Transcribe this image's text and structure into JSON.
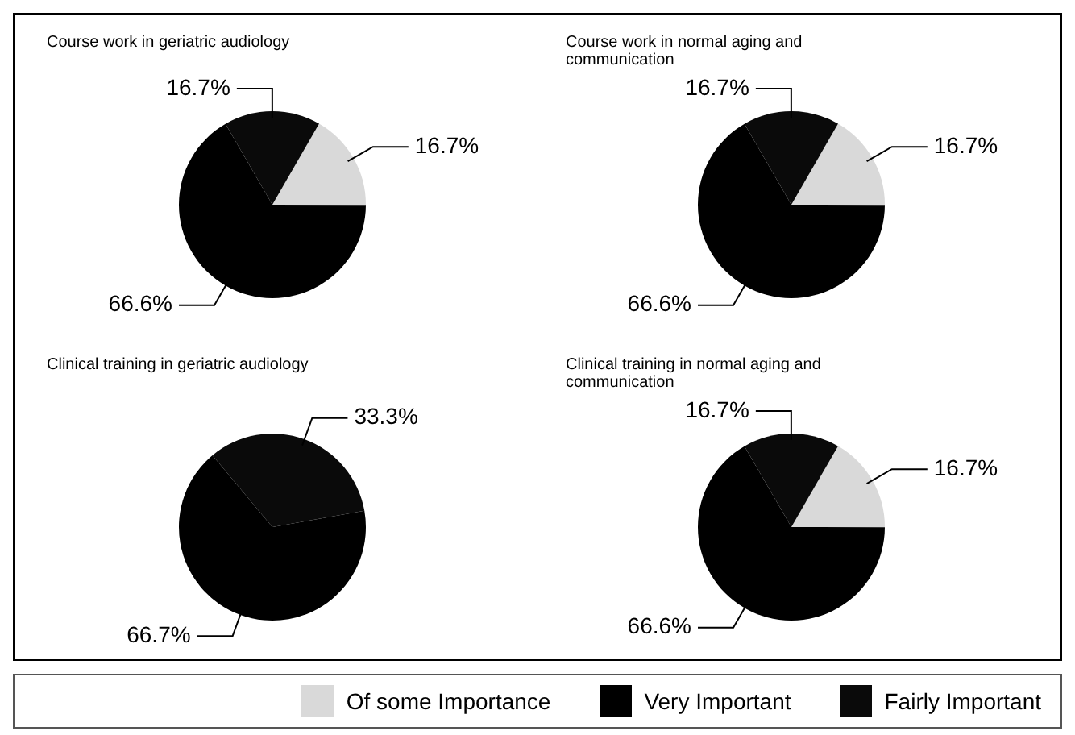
{
  "chart_data": [
    {
      "type": "pie",
      "title": "Course work in geriatric audiology",
      "categories": [
        "Of some Importance",
        "Very Important",
        "Fairly Important"
      ],
      "values": [
        16.7,
        66.6,
        16.7
      ],
      "colors": [
        "#d9d9d9",
        "#000000",
        "#0a0a0a"
      ],
      "value_labels": [
        "16.7%",
        "66.6%",
        "16.7%"
      ],
      "legend": "bottom"
    },
    {
      "type": "pie",
      "title": "Course work in normal aging and communication",
      "values": [
        16.7,
        66.6,
        16.7
      ],
      "colors": [
        "#d9d9d9",
        "#000000",
        "#0a0a0a"
      ],
      "value_labels": [
        "16.7%",
        "66.6%",
        "16.7%"
      ]
    },
    {
      "type": "pie",
      "title": "Clinical training in geriatric audiology",
      "values": [
        66.7,
        33.3
      ],
      "colors": [
        "#000000",
        "#0a0a0a"
      ],
      "value_labels": [
        "66.7%",
        "33.3%"
      ]
    },
    {
      "type": "pie",
      "title": "Clinical training in normal aging and communication",
      "values": [
        16.7,
        66.6,
        16.7
      ],
      "colors": [
        "#d9d9d9",
        "#000000",
        "#0a0a0a"
      ],
      "value_labels": [
        "16.7%",
        "66.6%",
        "16.7%"
      ]
    }
  ]
}
